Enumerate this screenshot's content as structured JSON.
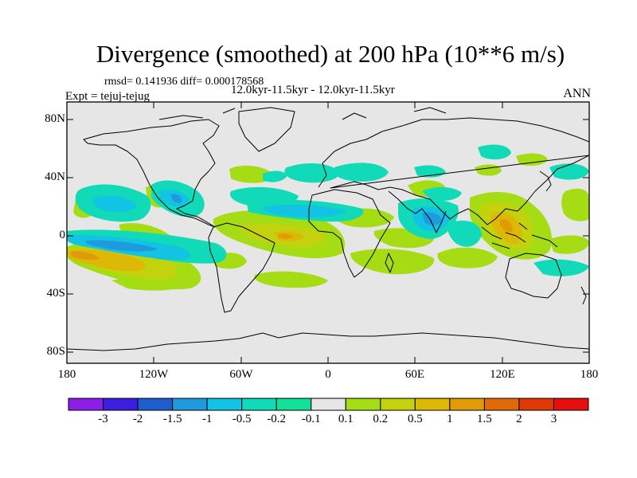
{
  "title": "Divergence (smoothed) at 200 hPa (10**6 m/s)",
  "stats": "rmsd= 0.141936 diff= 0.000178568",
  "period": "12.0kyr-11.5kyr - 12.0kyr-11.5kyr",
  "experiment": "Expt = tejuj-tejug",
  "season": "ANN",
  "y_ticks": [
    "80N",
    "40N",
    "0",
    "40S",
    "80S"
  ],
  "x_ticks": [
    "180",
    "120W",
    "60W",
    "0",
    "60E",
    "120E",
    "180"
  ],
  "colorbar": {
    "colors": [
      "#8d1ee6",
      "#3c1ede",
      "#1f5ccd",
      "#1f9bdd",
      "#12c3e3",
      "#10dab8",
      "#12e196",
      "#e6e6e6",
      "#a5dc13",
      "#c4d20e",
      "#ddb806",
      "#e09b06",
      "#e06a08",
      "#dd3a08",
      "#e60e0e"
    ],
    "labels": [
      "-3",
      "-2",
      "-1.5",
      "-1",
      "-0.5",
      "-0.2",
      "-0.1",
      "0.1",
      "0.2",
      "0.5",
      "1",
      "1.5",
      "2",
      "3"
    ]
  }
}
